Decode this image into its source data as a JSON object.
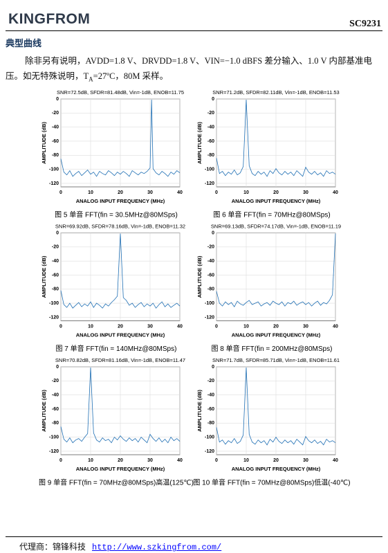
{
  "header": {
    "logo": "KINGFROM",
    "code": "SC9231"
  },
  "section_title": "典型曲线",
  "paragraph": {
    "line1": "除非另有说明，AVDD=1.8 V、DRVDD=1.8 V、VIN=−1.0 dBFS 差分输入、1.0 V 内部基准电",
    "line2_start": "压。如无特殊说明，T",
    "line2_sub": "A",
    "line2_end": "=27ºC，80M 采样。"
  },
  "chart_data": [
    {
      "type": "line",
      "title": "SNR=72.5dB, SFDR=81.48dB, Vin=-1dB, ENOB=11.75",
      "x_label": "ANALOG INPUT FREQUENCY (MHz)",
      "y_label": "AMPLITUDE (dB)",
      "caption": "图 5 单音 FFT(fin = 30.5MHz@80MSps)",
      "x": [
        0,
        1,
        2,
        3,
        4,
        5,
        6,
        7,
        8,
        9,
        10,
        11,
        12,
        13,
        14,
        15,
        16,
        17,
        18,
        19,
        20,
        21,
        22,
        23,
        24,
        25,
        26,
        27,
        28,
        29,
        30,
        30.5,
        31,
        32,
        33,
        34,
        35,
        36,
        37,
        38,
        39,
        40
      ],
      "series": [
        {
          "color": "#1f6fb4",
          "values": [
            -85,
            -104,
            -108,
            -102,
            -110,
            -106,
            -103,
            -109,
            -105,
            -101,
            -107,
            -104,
            -110,
            -103,
            -106,
            -108,
            -102,
            -105,
            -109,
            -104,
            -107,
            -103,
            -106,
            -110,
            -102,
            -105,
            -108,
            -104,
            -106,
            -103,
            -98,
            -1,
            -99,
            -105,
            -108,
            -103,
            -106,
            -110,
            -104,
            -107,
            -102,
            -105
          ]
        }
      ],
      "xlim": [
        0,
        40
      ],
      "ylim": [
        -125,
        0
      ],
      "xticks": [
        0,
        10,
        20,
        30,
        40
      ],
      "yticks": [
        0,
        -20,
        -40,
        -60,
        -80,
        -100,
        -120
      ],
      "grid": true
    },
    {
      "type": "line",
      "title": "SNR=71.2dB, SFDR=82.11dB, Vin=-1dB, ENOB=11.53",
      "x_label": "ANALOG INPUT FREQUENCY (MHz)",
      "y_label": "AMPLITUDE (dB)",
      "caption": "图 6 单音 FFT(fin = 70MHz@80MSps)",
      "x": [
        0,
        1,
        2,
        3,
        4,
        5,
        6,
        7,
        8,
        9,
        10,
        11,
        12,
        13,
        14,
        15,
        16,
        17,
        18,
        19,
        20,
        21,
        22,
        23,
        24,
        25,
        26,
        27,
        28,
        29,
        30,
        31,
        32,
        33,
        34,
        35,
        36,
        37,
        38,
        39,
        40
      ],
      "series": [
        {
          "color": "#1f6fb4",
          "values": [
            -84,
            -106,
            -103,
            -109,
            -104,
            -107,
            -101,
            -108,
            -105,
            -96,
            -1,
            -95,
            -106,
            -109,
            -103,
            -107,
            -104,
            -110,
            -102,
            -106,
            -99,
            -105,
            -108,
            -103,
            -107,
            -104,
            -109,
            -102,
            -106,
            -110,
            -97,
            -104,
            -107,
            -103,
            -108,
            -105,
            -110,
            -102,
            -106,
            -104,
            -107
          ]
        }
      ],
      "xlim": [
        0,
        40
      ],
      "ylim": [
        -125,
        0
      ],
      "xticks": [
        0,
        10,
        20,
        30,
        40
      ],
      "yticks": [
        0,
        -20,
        -40,
        -60,
        -80,
        -100,
        -120
      ],
      "grid": true
    },
    {
      "type": "line",
      "title": "SNR=69.92dB, SFDR=78.16dB, Vin=-1dB, ENOB=11.32",
      "x_label": "ANALOG INPUT FREQUENCY (MHz)",
      "y_label": "AMPLITUDE (dB)",
      "caption": "图 7 单音 FFT(fin = 140MHz@80MSps)",
      "x": [
        0,
        1,
        2,
        3,
        4,
        5,
        6,
        7,
        8,
        9,
        10,
        11,
        12,
        13,
        14,
        15,
        16,
        17,
        18,
        19,
        20,
        21,
        22,
        23,
        24,
        25,
        26,
        27,
        28,
        29,
        30,
        31,
        32,
        33,
        34,
        35,
        36,
        37,
        38,
        39,
        40
      ],
      "series": [
        {
          "color": "#1f6fb4",
          "values": [
            -82,
            -102,
            -106,
            -100,
            -107,
            -103,
            -99,
            -105,
            -101,
            -104,
            -98,
            -106,
            -100,
            -103,
            -107,
            -101,
            -104,
            -99,
            -95,
            -90,
            -1,
            -92,
            -96,
            -103,
            -100,
            -106,
            -102,
            -99,
            -105,
            -101,
            -104,
            -100,
            -107,
            -102,
            -98,
            -105,
            -101,
            -106,
            -103,
            -100,
            -104
          ]
        }
      ],
      "xlim": [
        0,
        40
      ],
      "ylim": [
        -125,
        0
      ],
      "xticks": [
        0,
        10,
        20,
        30,
        40
      ],
      "yticks": [
        0,
        -20,
        -40,
        -60,
        -80,
        -100,
        -120
      ],
      "grid": true
    },
    {
      "type": "line",
      "title": "SNR=69.13dB, SFDR=74.17dB, Vin=-1dB, ENOB=11.19",
      "x_label": "ANALOG INPUT FREQUENCY (MHz)",
      "y_label": "AMPLITUDE (dB)",
      "caption": "图 8 单音 FFT(fin = 200MHz@80MSps)",
      "x": [
        0,
        1,
        2,
        3,
        4,
        5,
        6,
        7,
        8,
        9,
        10,
        11,
        12,
        13,
        14,
        15,
        16,
        17,
        18,
        19,
        20,
        21,
        22,
        23,
        24,
        25,
        26,
        27,
        28,
        29,
        30,
        31,
        32,
        33,
        34,
        35,
        36,
        37,
        38,
        39,
        40
      ],
      "series": [
        {
          "color": "#1f6fb4",
          "values": [
            -83,
            -100,
            -104,
            -98,
            -102,
            -99,
            -105,
            -97,
            -101,
            -103,
            -99,
            -96,
            -102,
            -100,
            -98,
            -104,
            -101,
            -99,
            -103,
            -97,
            -100,
            -102,
            -98,
            -104,
            -99,
            -101,
            -97,
            -103,
            -100,
            -98,
            -102,
            -99,
            -104,
            -100,
            -97,
            -103,
            -99,
            -101,
            -96,
            -88,
            -1
          ]
        }
      ],
      "xlim": [
        0,
        40
      ],
      "ylim": [
        -125,
        0
      ],
      "xticks": [
        0,
        10,
        20,
        30,
        40
      ],
      "yticks": [
        0,
        -20,
        -40,
        -60,
        -80,
        -100,
        -120
      ],
      "grid": true
    },
    {
      "type": "line",
      "title": "SNR=70.82dB, SFDR=81.16dB, Vin=-1dB, ENOB=11.47",
      "x_label": "ANALOG INPUT FREQUENCY (MHz)",
      "y_label": "AMPLITUDE (dB)",
      "caption": "图 9 单音 FFT(fin = 70MHz@80MSps)高温(125℃)",
      "x": [
        0,
        1,
        2,
        3,
        4,
        5,
        6,
        7,
        8,
        9,
        10,
        11,
        12,
        13,
        14,
        15,
        16,
        17,
        18,
        19,
        20,
        21,
        22,
        23,
        24,
        25,
        26,
        27,
        28,
        29,
        30,
        31,
        32,
        33,
        34,
        35,
        36,
        37,
        38,
        39,
        40
      ],
      "series": [
        {
          "color": "#1f6fb4",
          "values": [
            -85,
            -103,
            -107,
            -101,
            -108,
            -104,
            -102,
            -106,
            -100,
            -95,
            -1,
            -94,
            -104,
            -107,
            -101,
            -105,
            -103,
            -108,
            -100,
            -104,
            -98,
            -103,
            -106,
            -101,
            -105,
            -102,
            -107,
            -100,
            -104,
            -108,
            -96,
            -102,
            -106,
            -101,
            -107,
            -103,
            -108,
            -100,
            -105,
            -102,
            -106
          ]
        }
      ],
      "xlim": [
        0,
        40
      ],
      "ylim": [
        -125,
        0
      ],
      "xticks": [
        0,
        10,
        20,
        30,
        40
      ],
      "yticks": [
        0,
        -20,
        -40,
        -60,
        -80,
        -100,
        -120
      ],
      "grid": true
    },
    {
      "type": "line",
      "title": "SNR=71.7dB, SFDR=85.71dB, Vin=-1dB, ENOB=11.61",
      "x_label": "ANALOG INPUT FREQUENCY (MHz)",
      "y_label": "AMPLITUDE (dB)",
      "caption": "图 10 单音 FFT(fin = 70MHz@80MSps)低温(-40℃)",
      "x": [
        0,
        1,
        2,
        3,
        4,
        5,
        6,
        7,
        8,
        9,
        10,
        11,
        12,
        13,
        14,
        15,
        16,
        17,
        18,
        19,
        20,
        21,
        22,
        23,
        24,
        25,
        26,
        27,
        28,
        29,
        30,
        31,
        32,
        33,
        34,
        35,
        36,
        37,
        38,
        39,
        40
      ],
      "series": [
        {
          "color": "#1f6fb4",
          "values": [
            -86,
            -107,
            -104,
            -110,
            -105,
            -108,
            -102,
            -109,
            -106,
            -97,
            -1,
            -96,
            -107,
            -110,
            -104,
            -108,
            -105,
            -111,
            -103,
            -107,
            -100,
            -106,
            -109,
            -104,
            -108,
            -105,
            -110,
            -103,
            -107,
            -111,
            -99,
            -105,
            -108,
            -104,
            -109,
            -106,
            -111,
            -103,
            -107,
            -105,
            -108
          ]
        }
      ],
      "xlim": [
        0,
        40
      ],
      "ylim": [
        -125,
        0
      ],
      "xticks": [
        0,
        10,
        20,
        30,
        40
      ],
      "yticks": [
        0,
        -20,
        -40,
        -60,
        -80,
        -100,
        -120
      ],
      "grid": true
    }
  ],
  "footer": {
    "agent": "代理商：锦锋科技",
    "link": "http://www.szkingfrom.com/"
  }
}
